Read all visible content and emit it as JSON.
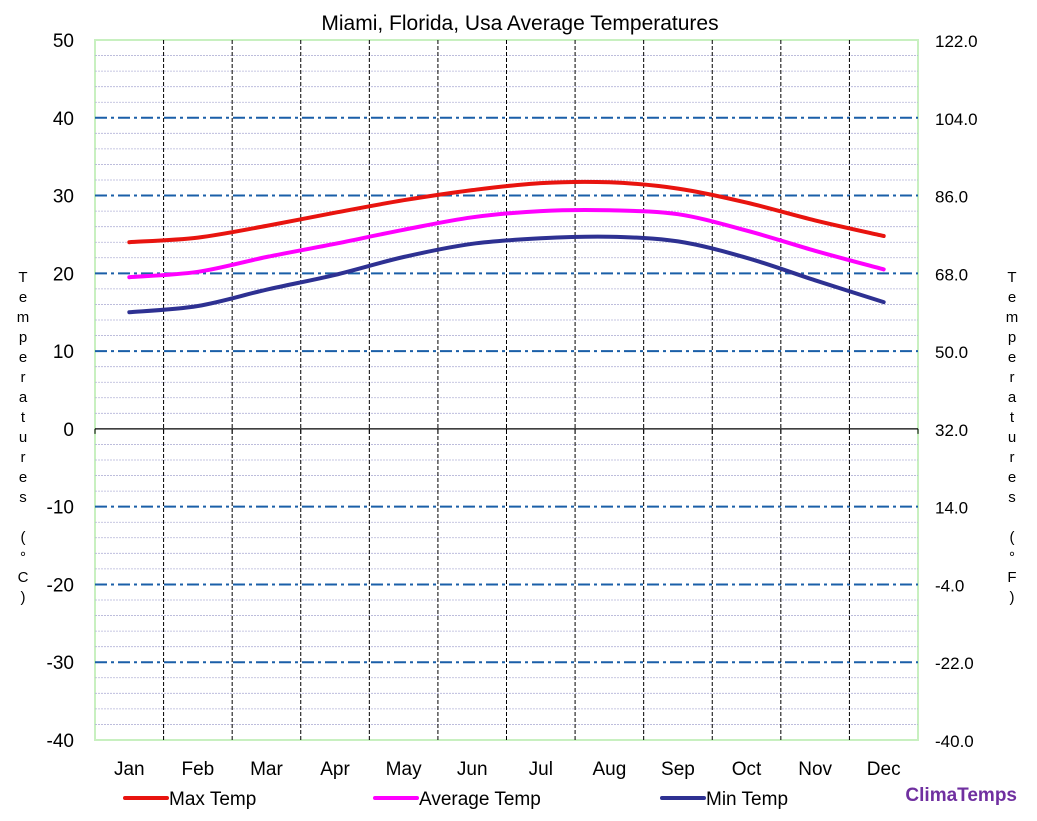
{
  "chart_data": {
    "type": "line",
    "title": "Miami, Florida, Usa Average Temperatures",
    "categories": [
      "Jan",
      "Feb",
      "Mar",
      "Apr",
      "May",
      "Jun",
      "Jul",
      "Aug",
      "Sep",
      "Oct",
      "Nov",
      "Dec"
    ],
    "series": [
      {
        "name": "Max Temp",
        "color": "#e8140f",
        "values": [
          24.0,
          24.6,
          26.1,
          27.8,
          29.4,
          30.7,
          31.6,
          31.7,
          30.9,
          29.1,
          26.8,
          24.8
        ]
      },
      {
        "name": "Average Temp",
        "color": "#ff00ff",
        "values": [
          19.5,
          20.2,
          22.1,
          23.8,
          25.6,
          27.2,
          28.0,
          28.1,
          27.6,
          25.5,
          22.9,
          20.5
        ]
      },
      {
        "name": "Min Temp",
        "color": "#2e3192",
        "values": [
          15.0,
          15.8,
          17.9,
          19.8,
          22.1,
          23.8,
          24.5,
          24.7,
          24.1,
          22.0,
          19.1,
          16.3
        ]
      }
    ],
    "ylim": [
      -40,
      50
    ],
    "y_ticks_left": [
      "50",
      "40",
      "30",
      "20",
      "10",
      "0",
      "-10",
      "-20",
      "-30",
      "-40"
    ],
    "y_ticks_right": [
      "122.0",
      "104.0",
      "86.0",
      "68.0",
      "50.0",
      "32.0",
      "14.0",
      "-4.0",
      "-22.0",
      "-40.0"
    ],
    "ylabel_left": "Temperatures (°C)",
    "ylabel_right": "Temperatures (°F)",
    "grid": true,
    "legend_position": "bottom"
  },
  "brand": "ClimaTemps"
}
